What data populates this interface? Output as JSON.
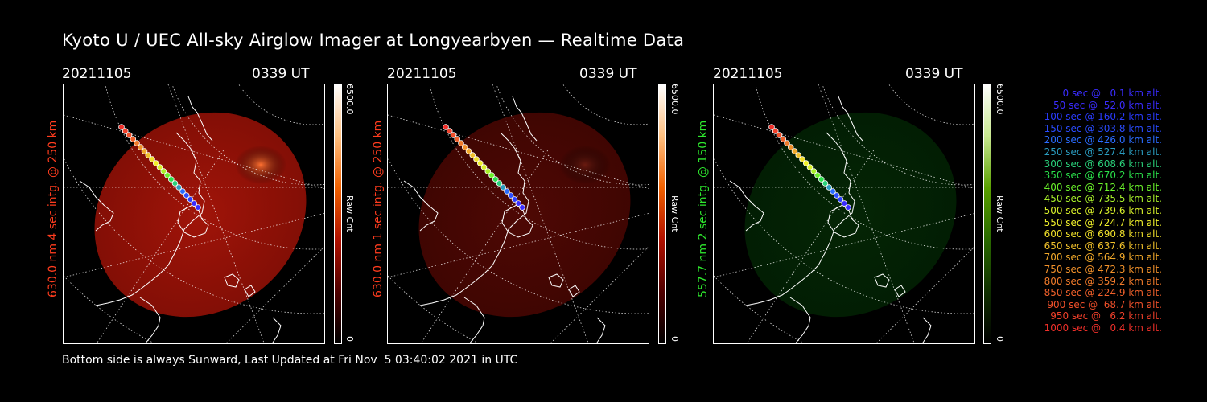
{
  "title": "Kyoto U / UEC All-sky Airglow Imager at Longyearbyen — Realtime Data",
  "panels": [
    {
      "date": "20211105",
      "time": "0339 UT",
      "side_label": "630.0 nm 4 sec intg. @ 250 km",
      "label_color": "#ff3c1e",
      "cbar_max": "6500.0",
      "cbar_min": "0",
      "cbar_unit": "Raw Cnt",
      "colorscale": "red",
      "intensity": 0.9
    },
    {
      "date": "20211105",
      "time": "0339 UT",
      "side_label": "630.0 nm 1 sec intg. @ 250 km",
      "label_color": "#ff3c1e",
      "cbar_max": "6500.0",
      "cbar_min": "0",
      "cbar_unit": "Raw Cnt",
      "colorscale": "red",
      "intensity": 0.35
    },
    {
      "date": "20211105",
      "time": "0339 UT",
      "side_label": "557.7 nm 2 sec intg. @ 150 km",
      "label_color": "#2ee82e",
      "cbar_max": "6500.0",
      "cbar_min": "0",
      "cbar_unit": "Raw Cnt",
      "colorscale": "green",
      "intensity": 0.3
    }
  ],
  "legend": [
    {
      "text": "0 sec @   0.1 km alt.",
      "color": "#3a2cff"
    },
    {
      "text": "50 sec @  52.0 km alt.",
      "color": "#3a2cff"
    },
    {
      "text": "100 sec @ 160.2 km alt.",
      "color": "#2a3cff"
    },
    {
      "text": "150 sec @ 303.8 km alt.",
      "color": "#2a4cff"
    },
    {
      "text": "200 sec @ 426.0 km alt.",
      "color": "#2a6cff"
    },
    {
      "text": "250 sec @ 527.4 km alt.",
      "color": "#2a9cc0"
    },
    {
      "text": "300 sec @ 608.6 km alt.",
      "color": "#2ad07a"
    },
    {
      "text": "350 sec @ 670.2 km alt.",
      "color": "#2ae04a"
    },
    {
      "text": "400 sec @ 712.4 km alt.",
      "color": "#6af02a"
    },
    {
      "text": "450 sec @ 735.5 km alt.",
      "color": "#a8f02a"
    },
    {
      "text": "500 sec @ 739.6 km alt.",
      "color": "#d8f02a"
    },
    {
      "text": "550 sec @ 724.7 km alt.",
      "color": "#f0f02a"
    },
    {
      "text": "600 sec @ 690.8 km alt.",
      "color": "#f0e02a"
    },
    {
      "text": "650 sec @ 637.6 km alt.",
      "color": "#f0c02a"
    },
    {
      "text": "700 sec @ 564.9 km alt.",
      "color": "#f0a82a"
    },
    {
      "text": "750 sec @ 472.3 km alt.",
      "color": "#f0902a"
    },
    {
      "text": "800 sec @ 359.2 km alt.",
      "color": "#f07a2a"
    },
    {
      "text": "850 sec @ 224.9 km alt.",
      "color": "#f0602a"
    },
    {
      "text": "900 sec @  68.7 km alt.",
      "color": "#f0502a"
    },
    {
      "text": "950 sec @   6.2 km alt.",
      "color": "#f0402a"
    },
    {
      "text": "1000 sec @   0.4 km alt.",
      "color": "#f0302a"
    }
  ],
  "footer": "Bottom side is always Sunward, Last Updated at Fri Nov  5 03:40:02 2021 in UTC"
}
